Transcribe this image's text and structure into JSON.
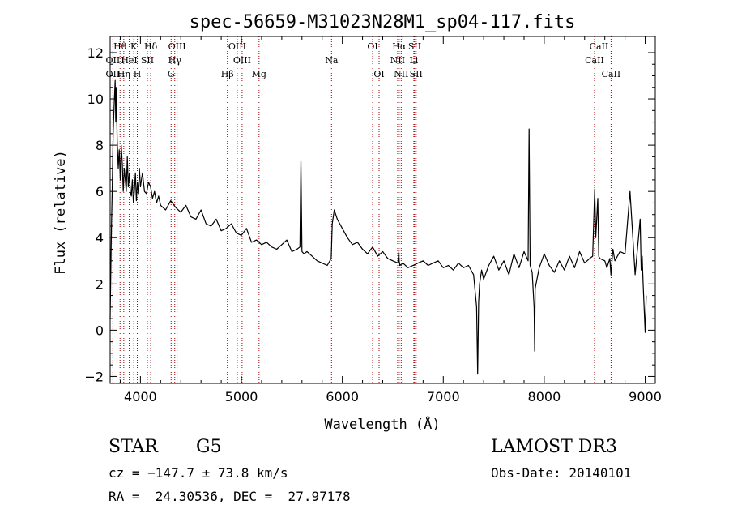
{
  "chart_data": {
    "type": "line",
    "title": "spec-56659-M31023N28M1_sp04-117.fits",
    "xlabel": "Wavelength (Å)",
    "ylabel": "Flux (relative)",
    "xlim": [
      3700,
      9100
    ],
    "ylim": [
      -2.3,
      12.7
    ],
    "x_ticks": [
      4000,
      5000,
      6000,
      7000,
      8000,
      9000
    ],
    "x_tick_labels": [
      "4000",
      "5000",
      "6000",
      "7000",
      "8000",
      "9000"
    ],
    "y_ticks": [
      -2,
      0,
      2,
      4,
      6,
      8,
      10,
      12
    ],
    "y_tick_labels": [
      "−2",
      "0",
      "2",
      "4",
      "6",
      "8",
      "10",
      "12"
    ],
    "grid": false,
    "series": [
      {
        "name": "spectrum",
        "color": "#000000",
        "x": [
          3700,
          3710,
          3715,
          3720,
          3730,
          3740,
          3750,
          3755,
          3760,
          3770,
          3780,
          3790,
          3800,
          3810,
          3820,
          3830,
          3840,
          3850,
          3860,
          3870,
          3880,
          3890,
          3900,
          3910,
          3920,
          3930,
          3940,
          3950,
          3960,
          3970,
          3980,
          3990,
          4000,
          4010,
          4020,
          4040,
          4060,
          4080,
          4100,
          4120,
          4140,
          4160,
          4180,
          4200,
          4250,
          4300,
          4350,
          4400,
          4450,
          4500,
          4550,
          4600,
          4650,
          4700,
          4750,
          4800,
          4850,
          4900,
          4950,
          5000,
          5050,
          5100,
          5150,
          5200,
          5250,
          5300,
          5350,
          5400,
          5450,
          5500,
          5550,
          5580,
          5590,
          5600,
          5620,
          5650,
          5700,
          5750,
          5800,
          5850,
          5890,
          5900,
          5920,
          5950,
          6000,
          6050,
          6100,
          6150,
          6200,
          6250,
          6300,
          6350,
          6400,
          6450,
          6500,
          6550,
          6560,
          6563,
          6570,
          6600,
          6650,
          6700,
          6750,
          6800,
          6850,
          6900,
          6950,
          7000,
          7050,
          7100,
          7150,
          7200,
          7250,
          7300,
          7330,
          7340,
          7350,
          7360,
          7380,
          7400,
          7450,
          7500,
          7550,
          7600,
          7650,
          7700,
          7750,
          7800,
          7840,
          7850,
          7860,
          7880,
          7900,
          7905,
          7910,
          7950,
          8000,
          8050,
          8100,
          8150,
          8200,
          8250,
          8300,
          8350,
          8400,
          8450,
          8480,
          8500,
          8510,
          8530,
          8540,
          8550,
          8600,
          8620,
          8650,
          8660,
          8680,
          8700,
          8750,
          8800,
          8850,
          8900,
          8950,
          8960,
          8970,
          8980,
          9000,
          9010
        ],
        "y": [
          0.5,
          3.5,
          5.0,
          6.0,
          8.5,
          9.8,
          10.8,
          9.0,
          10.5,
          8.2,
          7.0,
          7.8,
          6.5,
          8.0,
          7.2,
          6.0,
          7.0,
          6.5,
          6.0,
          7.5,
          6.2,
          6.8,
          6.0,
          5.8,
          6.5,
          5.5,
          6.0,
          6.8,
          5.6,
          6.4,
          5.9,
          7.0,
          6.2,
          6.5,
          6.8,
          6.0,
          5.9,
          6.4,
          6.2,
          5.7,
          6.0,
          5.5,
          5.8,
          5.4,
          5.2,
          5.6,
          5.3,
          5.1,
          5.4,
          4.9,
          4.8,
          5.2,
          4.6,
          4.5,
          4.8,
          4.3,
          4.4,
          4.6,
          4.2,
          4.1,
          4.4,
          3.8,
          3.9,
          3.7,
          3.8,
          3.6,
          3.5,
          3.7,
          3.9,
          3.4,
          3.5,
          3.6,
          7.3,
          3.4,
          3.3,
          3.4,
          3.2,
          3.0,
          2.9,
          2.8,
          3.1,
          4.6,
          5.2,
          4.8,
          4.4,
          4.0,
          3.7,
          3.8,
          3.5,
          3.3,
          3.6,
          3.2,
          3.4,
          3.1,
          3.0,
          2.9,
          3.4,
          3.0,
          2.8,
          2.9,
          2.7,
          2.8,
          2.9,
          3.0,
          2.8,
          2.9,
          3.0,
          2.7,
          2.8,
          2.6,
          2.9,
          2.7,
          2.8,
          2.4,
          1.0,
          -1.9,
          1.2,
          2.0,
          2.6,
          2.2,
          2.8,
          3.2,
          2.6,
          3.0,
          2.4,
          3.3,
          2.7,
          3.4,
          3.0,
          8.7,
          2.8,
          2.5,
          1.0,
          -0.9,
          1.8,
          2.7,
          3.3,
          2.8,
          2.5,
          3.0,
          2.6,
          3.2,
          2.7,
          3.4,
          2.9,
          3.1,
          3.2,
          6.1,
          4.0,
          5.7,
          3.2,
          3.1,
          3.0,
          2.7,
          3.1,
          2.4,
          3.5,
          3.0,
          3.4,
          3.3,
          6.0,
          2.4,
          4.8,
          2.6,
          3.2,
          2.0,
          -0.1,
          1.5
        ]
      }
    ],
    "line_markers": [
      {
        "name": "Hθ",
        "wavelength": 3798,
        "row": 1
      },
      {
        "name": "K",
        "wavelength": 3934,
        "row": 1
      },
      {
        "name": "Hδ",
        "wavelength": 4102,
        "row": 1
      },
      {
        "name": "OIII",
        "wavelength": 4363,
        "row": 1
      },
      {
        "name": "OIII",
        "wavelength": 4959,
        "row": 1
      },
      {
        "name": "OI",
        "wavelength": 6300,
        "row": 1
      },
      {
        "name": "Hα",
        "wavelength": 6563,
        "row": 1
      },
      {
        "name": "SII",
        "wavelength": 6717,
        "row": 1
      },
      {
        "name": "CaII",
        "wavelength": 8542,
        "row": 1
      },
      {
        "name": "OII",
        "wavelength": 3727,
        "row": 2
      },
      {
        "name": "HeI",
        "wavelength": 3889,
        "row": 2
      },
      {
        "name": "SII",
        "wavelength": 4069,
        "row": 2
      },
      {
        "name": "Hγ",
        "wavelength": 4340,
        "row": 2
      },
      {
        "name": "OIII",
        "wavelength": 5007,
        "row": 2
      },
      {
        "name": "Na",
        "wavelength": 5893,
        "row": 2
      },
      {
        "name": "NII",
        "wavelength": 6548,
        "row": 2
      },
      {
        "name": "Li",
        "wavelength": 6708,
        "row": 2
      },
      {
        "name": "CaII",
        "wavelength": 8498,
        "row": 2
      },
      {
        "name": "OII",
        "wavelength": 3727,
        "row": 3
      },
      {
        "name": "Hη",
        "wavelength": 3835,
        "row": 3
      },
      {
        "name": "H",
        "wavelength": 3969,
        "row": 3
      },
      {
        "name": "G",
        "wavelength": 4304,
        "row": 3
      },
      {
        "name": "Hβ",
        "wavelength": 4861,
        "row": 3
      },
      {
        "name": "Mg",
        "wavelength": 5175,
        "row": 3
      },
      {
        "name": "OI",
        "wavelength": 6364,
        "row": 3
      },
      {
        "name": "NII",
        "wavelength": 6583,
        "row": 3
      },
      {
        "name": "SII",
        "wavelength": 6731,
        "row": 3
      },
      {
        "name": "CaII",
        "wavelength": 8662,
        "row": 3
      }
    ],
    "marker_color": "#aa0000"
  },
  "info": {
    "object_class": "STAR",
    "subclass": "G5",
    "survey": "LAMOST DR3",
    "redshift_line": "cz = −147.7 ± 73.8 km/s",
    "obs_date_line": "Obs-Date: 20140101",
    "coords_line": "RA =  24.30536, DEC =  27.97178"
  }
}
